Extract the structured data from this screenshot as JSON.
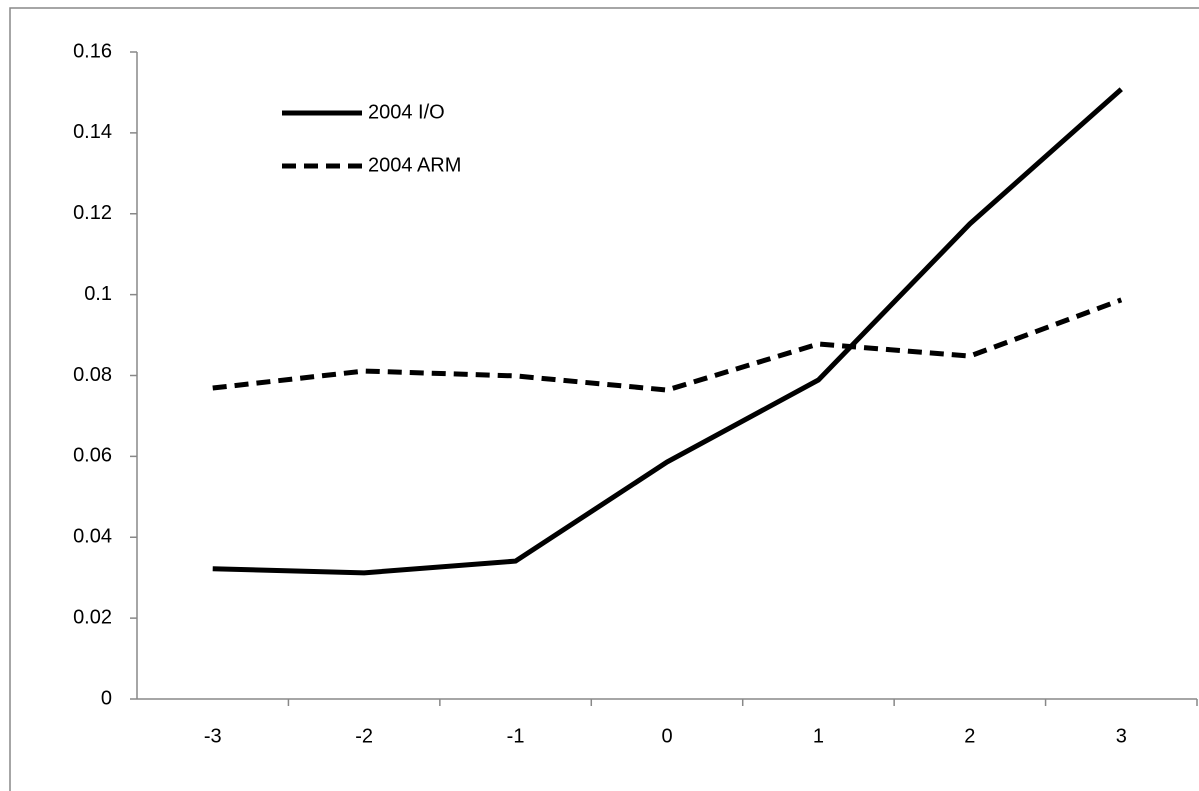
{
  "chart_data": {
    "type": "line",
    "categories": [
      "-3",
      "-2",
      "-1",
      "0",
      "1",
      "2",
      "3"
    ],
    "series": [
      {
        "name": "2004 I/O",
        "color": "#000000",
        "style": "solid",
        "values": [
          0.0322,
          0.0312,
          0.0341,
          0.0586,
          0.0789,
          0.1175,
          0.1508
        ]
      },
      {
        "name": "2004 ARM",
        "color": "#000000",
        "style": "dashed",
        "values": [
          0.0769,
          0.0811,
          0.0799,
          0.0764,
          0.0878,
          0.0848,
          0.0987
        ]
      }
    ],
    "ylim": [
      0,
      0.16
    ],
    "yticks": [
      0,
      0.02,
      0.04,
      0.06,
      0.08,
      0.1,
      0.12,
      0.14,
      0.16
    ],
    "grid": false,
    "legend": "top-left"
  }
}
